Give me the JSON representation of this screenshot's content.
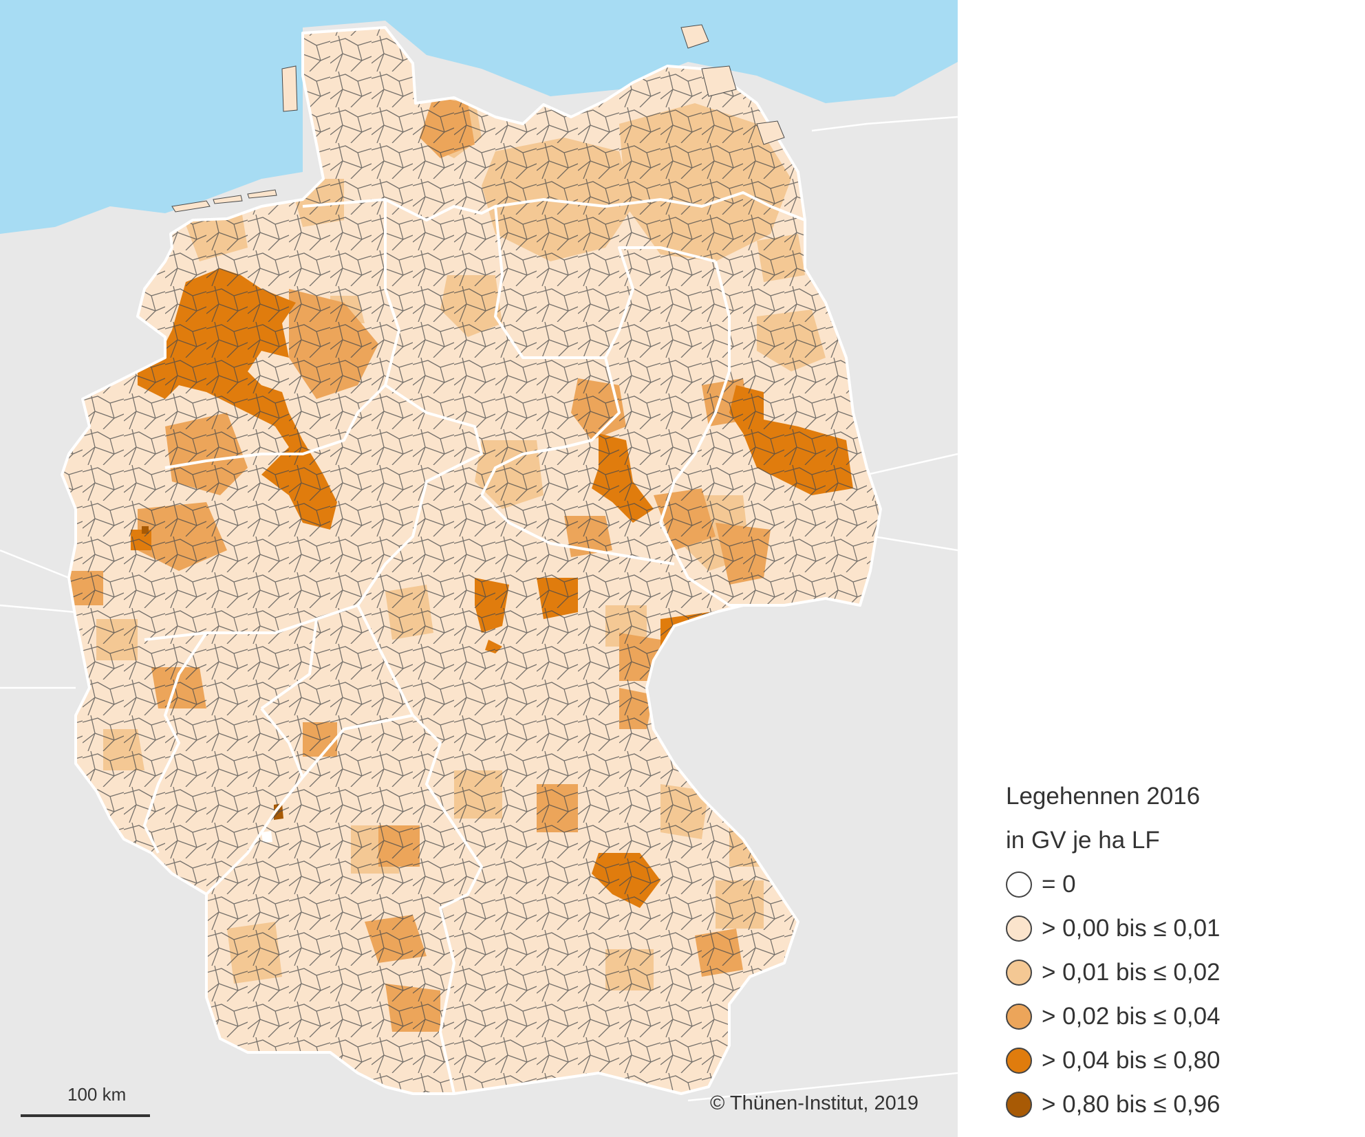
{
  "map": {
    "copyright": "© Thünen-Institut, 2019",
    "scale_label": "100 km"
  },
  "legend": {
    "title_line1": "Legehennen 2016",
    "title_line2": "in GV je ha LF",
    "items": [
      {
        "label": "= 0",
        "color": "#ffffff"
      },
      {
        "label": "> 0,00 bis ≤ 0,01",
        "color": "#fbe4cc"
      },
      {
        "label": "> 0,01 bis ≤ 0,02",
        "color": "#f4c894"
      },
      {
        "label": "> 0,02 bis ≤ 0,04",
        "color": "#eca55a"
      },
      {
        "label": "> 0,04 bis ≤ 0,80",
        "color": "#e07c0d"
      },
      {
        "label": "> 0,80 bis ≤ 0,96",
        "color": "#a85a05"
      }
    ]
  },
  "colors": {
    "sea": "#a7dcf3",
    "neighbor_land": "#e8e8e8",
    "district_border": "#4a4a4a",
    "state_border": "#ffffff"
  },
  "icons": {
    "legend_swatch": "circle-swatch",
    "scale": "scale-bar"
  }
}
